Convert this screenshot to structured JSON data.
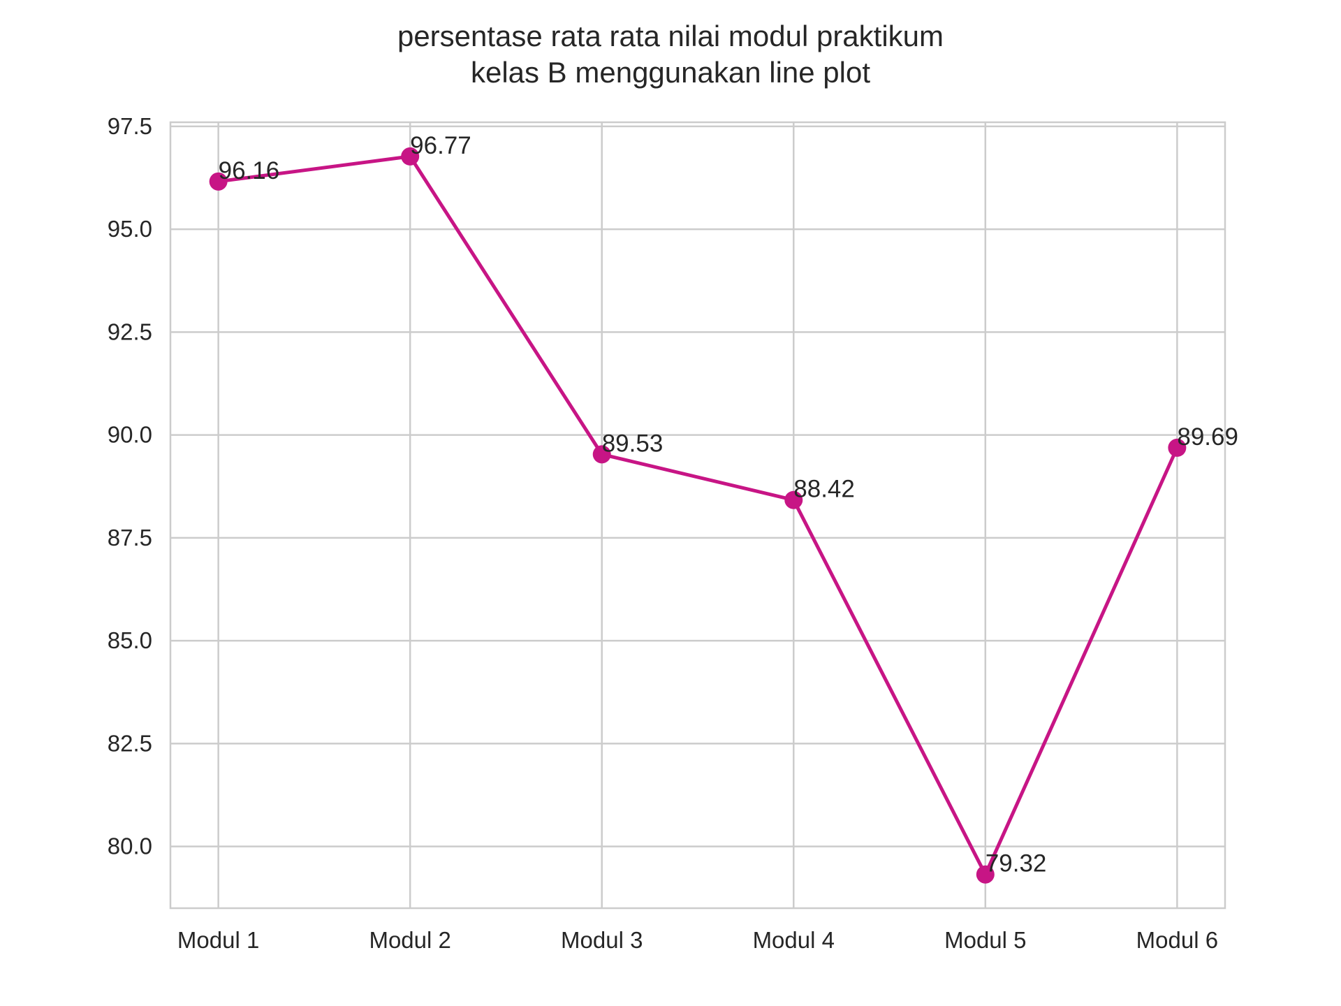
{
  "chart_data": {
    "type": "line",
    "title_lines": [
      "persentase rata rata nilai modul praktikum",
      "kelas B menggunakan line plot"
    ],
    "categories": [
      "Modul 1",
      "Modul 2",
      "Modul 3",
      "Modul 4",
      "Modul 5",
      "Modul 6"
    ],
    "series": [
      {
        "name": "kelas B",
        "values": [
          96.16,
          96.77,
          89.53,
          88.42,
          79.32,
          89.69
        ],
        "labels": [
          "96.16",
          "96.77",
          "89.53",
          "88.42",
          "79.32",
          "89.69"
        ],
        "color": "#c71585"
      }
    ],
    "xlabel": "",
    "ylabel": "",
    "ylim": [
      78.5,
      97.6
    ],
    "yticks": [
      80.0,
      82.5,
      85.0,
      87.5,
      90.0,
      92.5,
      95.0,
      97.5
    ],
    "ytick_labels": [
      "80.0",
      "82.5",
      "85.0",
      "87.5",
      "90.0",
      "92.5",
      "95.0",
      "97.5"
    ],
    "grid": true,
    "legend": "none"
  },
  "colors": {
    "background": "#ffffff",
    "grid": "#cccccc",
    "axis": "#cccccc",
    "text": "#262626",
    "line": "#c71585"
  }
}
